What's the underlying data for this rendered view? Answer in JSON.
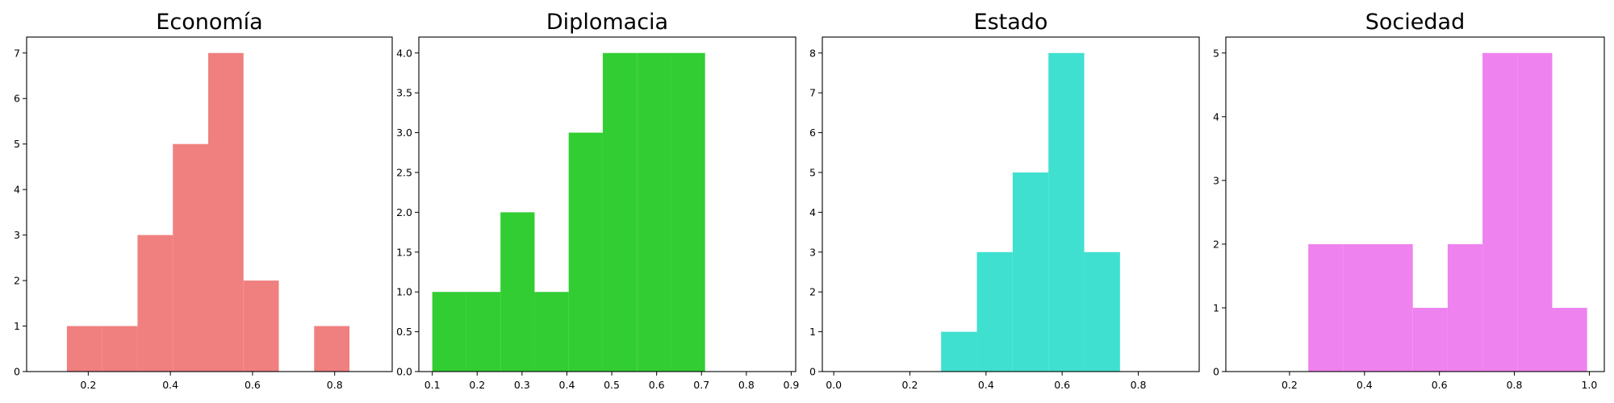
{
  "chart_data": [
    {
      "type": "histogram",
      "title": "Economía",
      "color": "#f08080",
      "xlim": [
        0.05,
        0.94
      ],
      "ylim": [
        0,
        7.35
      ],
      "xticks": [
        {
          "v": 0.2,
          "label": "0.2"
        },
        {
          "v": 0.4,
          "label": "0.4"
        },
        {
          "v": 0.6,
          "label": "0.6"
        },
        {
          "v": 0.8,
          "label": "0.8"
        }
      ],
      "yticks": [
        {
          "v": 0,
          "label": "0"
        },
        {
          "v": 1,
          "label": "1"
        },
        {
          "v": 2,
          "label": "2"
        },
        {
          "v": 3,
          "label": "3"
        },
        {
          "v": 4,
          "label": "4"
        },
        {
          "v": 5,
          "label": "5"
        },
        {
          "v": 6,
          "label": "6"
        },
        {
          "v": 7,
          "label": "7"
        }
      ],
      "bins": [
        {
          "x0": 0.148,
          "x1": 0.234,
          "y": 1
        },
        {
          "x0": 0.234,
          "x1": 0.32,
          "y": 1
        },
        {
          "x0": 0.32,
          "x1": 0.406,
          "y": 3
        },
        {
          "x0": 0.406,
          "x1": 0.492,
          "y": 5
        },
        {
          "x0": 0.492,
          "x1": 0.578,
          "y": 7
        },
        {
          "x0": 0.578,
          "x1": 0.664,
          "y": 2
        },
        {
          "x0": 0.664,
          "x1": 0.75,
          "y": 0
        },
        {
          "x0": 0.75,
          "x1": 0.836,
          "y": 1
        }
      ]
    },
    {
      "type": "histogram",
      "title": "Diplomacia",
      "color": "#32cd32",
      "xlim": [
        0.07,
        0.91
      ],
      "ylim": [
        0,
        4.2
      ],
      "xticks": [
        {
          "v": 0.1,
          "label": "0.1"
        },
        {
          "v": 0.2,
          "label": "0.2"
        },
        {
          "v": 0.3,
          "label": "0.3"
        },
        {
          "v": 0.4,
          "label": "0.4"
        },
        {
          "v": 0.5,
          "label": "0.5"
        },
        {
          "v": 0.6,
          "label": "0.6"
        },
        {
          "v": 0.7,
          "label": "0.7"
        },
        {
          "v": 0.8,
          "label": "0.8"
        },
        {
          "v": 0.9,
          "label": "0.9"
        }
      ],
      "yticks": [
        {
          "v": 0,
          "label": "0.0"
        },
        {
          "v": 0.5,
          "label": "0.5"
        },
        {
          "v": 1,
          "label": "1.0"
        },
        {
          "v": 1.5,
          "label": "1.5"
        },
        {
          "v": 2,
          "label": "2.0"
        },
        {
          "v": 2.5,
          "label": "2.5"
        },
        {
          "v": 3,
          "label": "3.0"
        },
        {
          "v": 3.5,
          "label": "3.5"
        },
        {
          "v": 4,
          "label": "4.0"
        }
      ],
      "bins": [
        {
          "x0": 0.1,
          "x1": 0.176,
          "y": 1
        },
        {
          "x0": 0.176,
          "x1": 0.252,
          "y": 1
        },
        {
          "x0": 0.252,
          "x1": 0.328,
          "y": 2
        },
        {
          "x0": 0.328,
          "x1": 0.404,
          "y": 1
        },
        {
          "x0": 0.404,
          "x1": 0.48,
          "y": 3
        },
        {
          "x0": 0.48,
          "x1": 0.556,
          "y": 4
        },
        {
          "x0": 0.556,
          "x1": 0.632,
          "y": 4
        },
        {
          "x0": 0.632,
          "x1": 0.708,
          "y": 4
        }
      ]
    },
    {
      "type": "histogram",
      "title": "Estado",
      "color": "#40e0d0",
      "xlim": [
        -0.03,
        0.96
      ],
      "ylim": [
        0,
        8.4
      ],
      "xticks": [
        {
          "v": 0,
          "label": "0.0"
        },
        {
          "v": 0.2,
          "label": "0.2"
        },
        {
          "v": 0.4,
          "label": "0.4"
        },
        {
          "v": 0.6,
          "label": "0.6"
        },
        {
          "v": 0.8,
          "label": "0.8"
        }
      ],
      "yticks": [
        {
          "v": 0,
          "label": "0"
        },
        {
          "v": 1,
          "label": "1"
        },
        {
          "v": 2,
          "label": "2"
        },
        {
          "v": 3,
          "label": "3"
        },
        {
          "v": 4,
          "label": "4"
        },
        {
          "v": 5,
          "label": "5"
        },
        {
          "v": 6,
          "label": "6"
        },
        {
          "v": 7,
          "label": "7"
        },
        {
          "v": 8,
          "label": "8"
        }
      ],
      "bins": [
        {
          "x0": 0.0,
          "x1": 0.094,
          "y": 0
        },
        {
          "x0": 0.094,
          "x1": 0.188,
          "y": 0
        },
        {
          "x0": 0.188,
          "x1": 0.282,
          "y": 0
        },
        {
          "x0": 0.282,
          "x1": 0.376,
          "y": 1
        },
        {
          "x0": 0.376,
          "x1": 0.47,
          "y": 3
        },
        {
          "x0": 0.47,
          "x1": 0.564,
          "y": 5
        },
        {
          "x0": 0.564,
          "x1": 0.658,
          "y": 8
        },
        {
          "x0": 0.658,
          "x1": 0.752,
          "y": 3
        }
      ]
    },
    {
      "type": "histogram",
      "title": "Sociedad",
      "color": "#ee82ee",
      "xlim": [
        0.03,
        1.04
      ],
      "ylim": [
        0,
        5.25
      ],
      "xticks": [
        {
          "v": 0.2,
          "label": "0.2"
        },
        {
          "v": 0.4,
          "label": "0.4"
        },
        {
          "v": 0.6,
          "label": "0.6"
        },
        {
          "v": 0.8,
          "label": "0.8"
        },
        {
          "v": 1.0,
          "label": "1.0"
        }
      ],
      "yticks": [
        {
          "v": 0,
          "label": "0"
        },
        {
          "v": 1,
          "label": "1"
        },
        {
          "v": 2,
          "label": "2"
        },
        {
          "v": 3,
          "label": "3"
        },
        {
          "v": 4,
          "label": "4"
        },
        {
          "v": 5,
          "label": "5"
        }
      ],
      "bins": [
        {
          "x0": 0.25,
          "x1": 0.343,
          "y": 2
        },
        {
          "x0": 0.343,
          "x1": 0.436,
          "y": 2
        },
        {
          "x0": 0.436,
          "x1": 0.529,
          "y": 2
        },
        {
          "x0": 0.529,
          "x1": 0.622,
          "y": 1
        },
        {
          "x0": 0.622,
          "x1": 0.715,
          "y": 2
        },
        {
          "x0": 0.715,
          "x1": 0.808,
          "y": 5
        },
        {
          "x0": 0.808,
          "x1": 0.901,
          "y": 5
        },
        {
          "x0": 0.901,
          "x1": 0.994,
          "y": 1
        }
      ]
    }
  ]
}
